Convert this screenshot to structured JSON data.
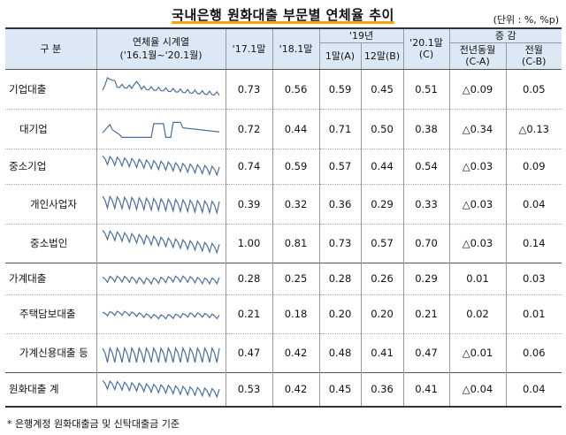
{
  "title": "국내은행 원화대출 부문별 연체율 추이",
  "unit": "(단위 : %, %p)",
  "headers": {
    "category": "구 분",
    "series": "연체율 시계열",
    "series_range": "('16.1월~'20.1월)",
    "jan17": "'17.1말",
    "jan18": "'18.1말",
    "y19": "'19년",
    "jan19": "1말(A)",
    "dec19": "12말(B)",
    "jan20": "'20.1말",
    "jan20_sub": "(C)",
    "change": "증 감",
    "yoy": "전년동월",
    "yoy_sub": "(C-A)",
    "mom": "전월",
    "mom_sub": "(C-B)"
  },
  "rows": [
    {
      "label": "기업대출",
      "v17": "0.73",
      "v18": "0.56",
      "a": "0.59",
      "b": "0.45",
      "c": "0.51",
      "yoy": "△0.09",
      "mom": "0.05"
    },
    {
      "label": "대기업",
      "v17": "0.72",
      "v18": "0.44",
      "a": "0.71",
      "b": "0.50",
      "c": "0.38",
      "yoy": "△0.34",
      "mom": "△0.13"
    },
    {
      "label": "중소기업",
      "v17": "0.74",
      "v18": "0.59",
      "a": "0.57",
      "b": "0.44",
      "c": "0.54",
      "yoy": "△0.03",
      "mom": "0.09"
    },
    {
      "label": "개인사업자",
      "v17": "0.39",
      "v18": "0.32",
      "a": "0.36",
      "b": "0.29",
      "c": "0.33",
      "yoy": "△0.03",
      "mom": "0.04"
    },
    {
      "label": "중소법인",
      "v17": "1.00",
      "v18": "0.81",
      "a": "0.73",
      "b": "0.57",
      "c": "0.70",
      "yoy": "△0.03",
      "mom": "0.14"
    },
    {
      "label": "가계대출",
      "v17": "0.28",
      "v18": "0.25",
      "a": "0.28",
      "b": "0.26",
      "c": "0.29",
      "yoy": "0.01",
      "mom": "0.03"
    },
    {
      "label": "주택담보대출",
      "v17": "0.21",
      "v18": "0.18",
      "a": "0.20",
      "b": "0.20",
      "c": "0.21",
      "yoy": "0.02",
      "mom": "0.01"
    },
    {
      "label": "가계신용대출 등",
      "v17": "0.47",
      "v18": "0.42",
      "a": "0.48",
      "b": "0.41",
      "c": "0.47",
      "yoy": "△0.01",
      "mom": "0.06"
    },
    {
      "label": "원화대출 계",
      "v17": "0.53",
      "v18": "0.42",
      "a": "0.45",
      "b": "0.36",
      "c": "0.41",
      "yoy": "△0.04",
      "mom": "0.04"
    }
  ],
  "footnote": "* 은행계정 원화대출금 및 신탁대출금 기준",
  "colors": {
    "header_bg": "#dce8f6",
    "spark": "#4a6f9c"
  }
}
